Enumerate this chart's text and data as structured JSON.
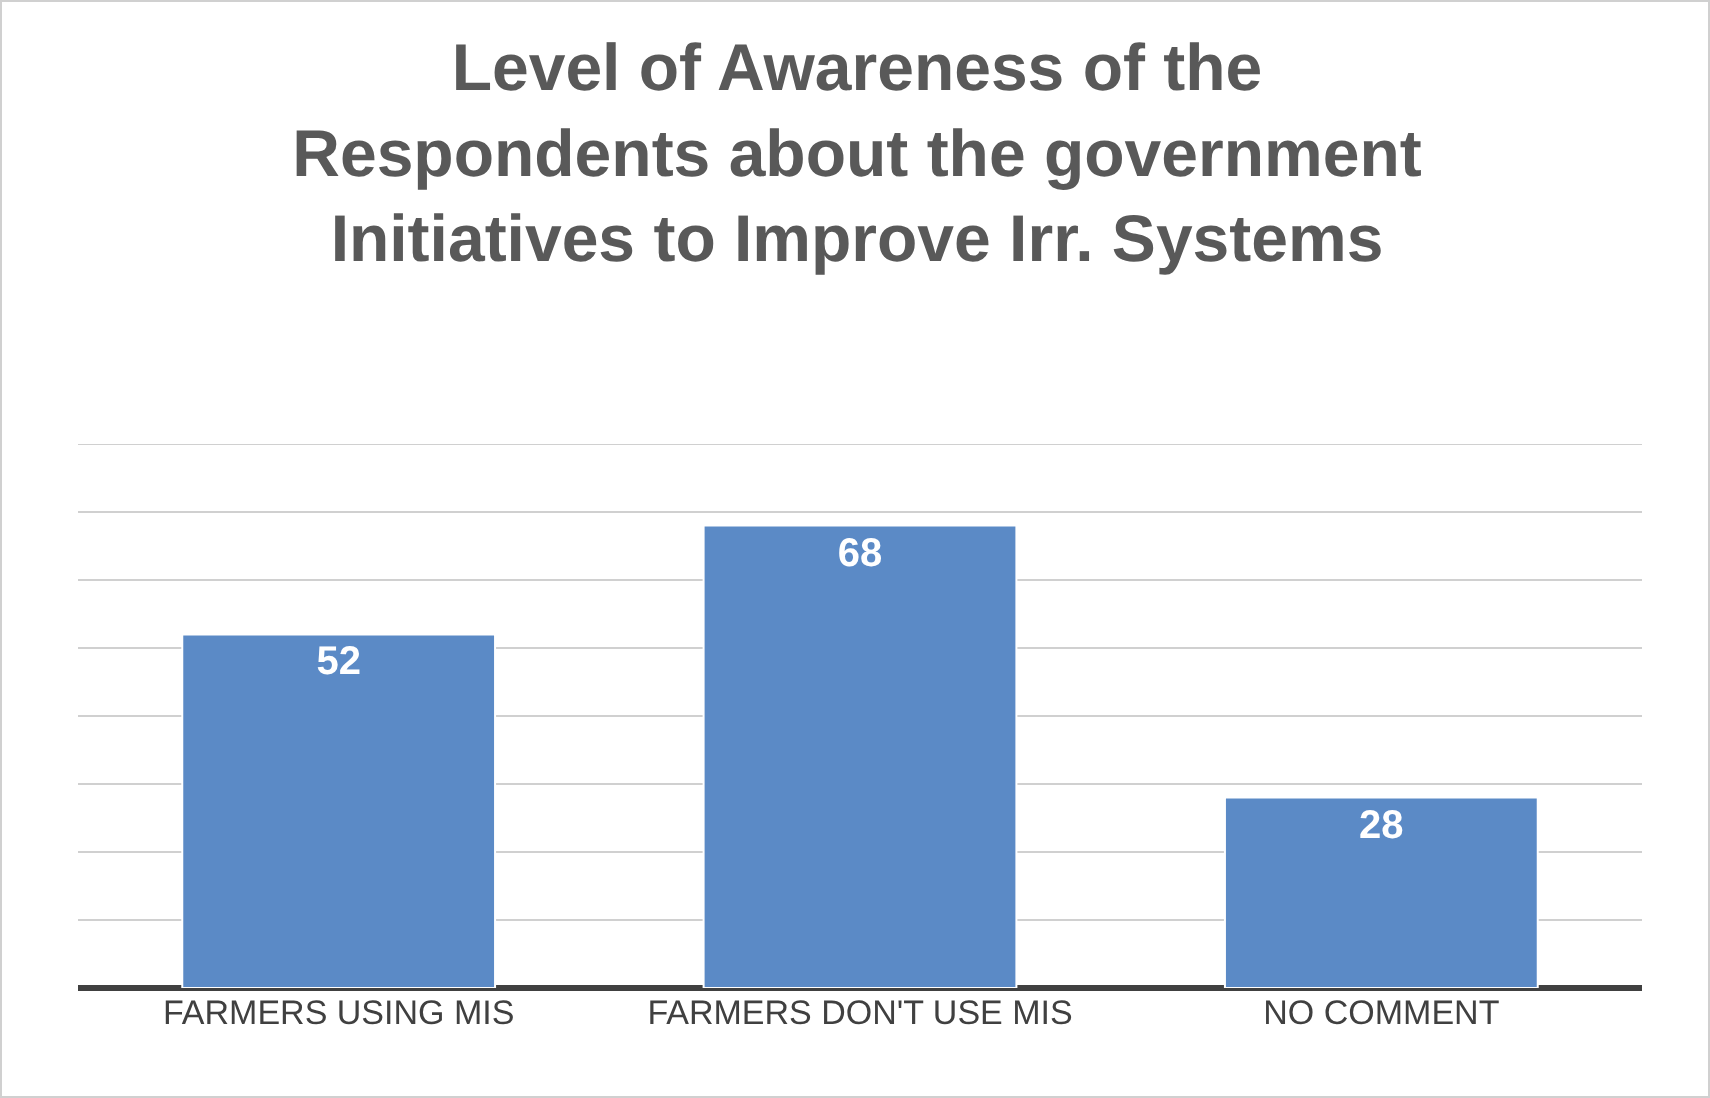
{
  "chart_data": {
    "type": "bar",
    "title": "Level of Awareness of the\nRespondents about the government\nInitiatives to Improve Irr. Systems",
    "categories": [
      "FARMERS USING MIS",
      "FARMERS DON'T USE MIS",
      "NO COMMENT"
    ],
    "values": [
      52,
      68,
      28
    ],
    "color": "#5b8ac6",
    "ylim": [
      0,
      80
    ],
    "yticks": [
      {
        "value": 0,
        "label": null
      },
      {
        "value": 10,
        "label": null
      },
      {
        "value": 20,
        "label": null
      },
      {
        "value": 30,
        "label": null
      },
      {
        "value": 40,
        "label": null
      },
      {
        "value": 50,
        "label": null
      },
      {
        "value": 60,
        "label": null
      },
      {
        "value": 70,
        "label": null
      },
      {
        "value": 80,
        "label": null
      }
    ],
    "grid": "y",
    "data_labels": true,
    "tick_labels": "x",
    "legend": false
  }
}
